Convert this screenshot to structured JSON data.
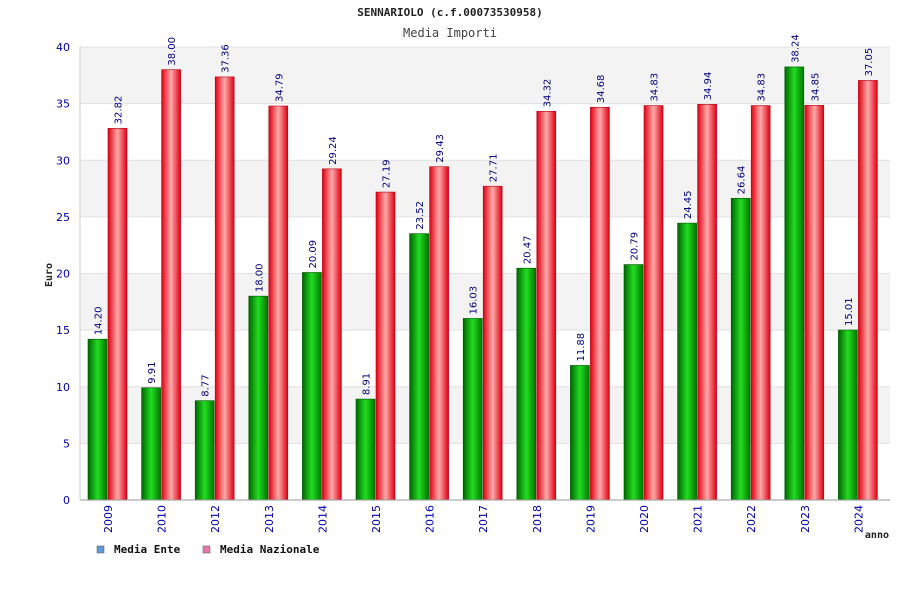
{
  "chart_data": {
    "type": "bar",
    "title": "SENNARIOLO (c.f.00073530958)",
    "subtitle": "Media Importi",
    "xlabel": "anno",
    "ylabel": "Euro",
    "ylim": [
      0,
      40
    ],
    "yticks": [
      "0",
      "5",
      "10",
      "15",
      "20",
      "25",
      "30",
      "35",
      "40"
    ],
    "categories": [
      "2009",
      "2010",
      "2012",
      "2013",
      "2014",
      "2015",
      "2016",
      "2017",
      "2018",
      "2019",
      "2020",
      "2021",
      "2022",
      "2023",
      "2024"
    ],
    "series": [
      {
        "name": "Media Ente",
        "color": "#00aa00",
        "values": [
          14.2,
          9.91,
          8.77,
          18.0,
          20.09,
          8.91,
          23.52,
          16.03,
          20.47,
          11.88,
          20.79,
          24.45,
          26.64,
          38.24,
          15.01
        ],
        "labels": [
          "14.20",
          "9.91",
          "8.77",
          "18.00",
          "20.09",
          "8.91",
          "23.52",
          "16.03",
          "20.47",
          "11.88",
          "20.79",
          "24.45",
          "26.64",
          "38.24",
          "15.01"
        ]
      },
      {
        "name": "Media Nazionale",
        "color": "#ee1c25",
        "values": [
          32.82,
          38.0,
          37.36,
          34.79,
          29.24,
          27.19,
          29.43,
          27.71,
          34.32,
          34.68,
          34.83,
          34.94,
          34.83,
          34.85,
          37.05
        ],
        "labels": [
          "32.82",
          "38.00",
          "37.36",
          "34.79",
          "29.24",
          "27.19",
          "29.43",
          "27.71",
          "34.32",
          "34.68",
          "34.83",
          "34.94",
          "34.83",
          "34.85",
          "37.05"
        ]
      }
    ],
    "legend": [
      {
        "label": "Media Ente",
        "color": "#5b9bd5"
      },
      {
        "label": "Media Nazionale",
        "color": "#e377a9"
      }
    ],
    "legend_position": "bottom-left",
    "grid": true
  }
}
